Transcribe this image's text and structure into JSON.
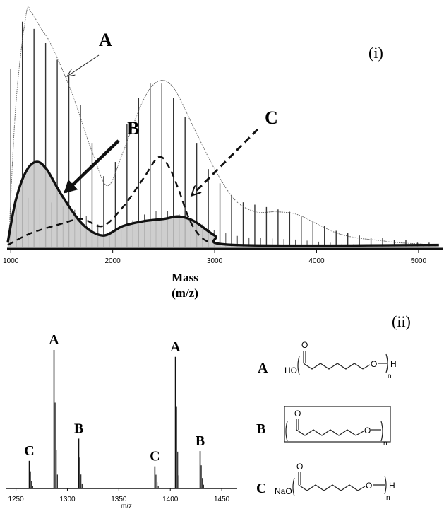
{
  "figure": {
    "panel_i_label": "(i)",
    "panel_ii_label": "(ii)",
    "callout_a": "A",
    "callout_b": "B",
    "callout_c": "C",
    "structures": [
      {
        "letter": "A",
        "end_left": "HO",
        "carbonyl_o": "O",
        "ether_o": "O",
        "end_right": "H",
        "subscript": "n"
      },
      {
        "letter": "B",
        "carbonyl_o": "O",
        "ether_o": "O",
        "subscript": "n"
      },
      {
        "letter": "C",
        "end_left": "NaO",
        "carbonyl_o": "O",
        "ether_o": "O",
        "end_right": "H",
        "subscript": "n"
      }
    ]
  },
  "chart_data": [
    {
      "type": "line",
      "panel": "(i)",
      "xlabel_line1": "Mass",
      "xlabel_line2": "(m/z)",
      "xlim": [
        950,
        5250
      ],
      "ylim": [
        0,
        100
      ],
      "x_ticks": [
        "1000",
        "2000",
        "3000",
        "4000",
        "5000"
      ],
      "series": [
        {
          "name": "A",
          "style": "thin dotted envelope",
          "x": [
            980,
            1050,
            1150,
            1200,
            1300,
            1400,
            1600,
            1800,
            1950,
            2100,
            2300,
            2450,
            2600,
            2800,
            3000,
            3200,
            3400,
            3600,
            3800,
            4000,
            4200,
            4400,
            4600,
            4800,
            5000,
            5200
          ],
          "y": [
            2,
            60,
            98,
            99,
            92,
            85,
            65,
            40,
            26,
            40,
            62,
            70,
            67,
            50,
            33,
            20,
            15,
            15,
            14,
            10,
            6,
            4,
            3,
            2,
            1.5,
            1
          ]
        },
        {
          "name": "B",
          "style": "thick solid",
          "x": [
            970,
            1050,
            1150,
            1250,
            1350,
            1500,
            1700,
            1900,
            2100,
            2300,
            2500,
            2650,
            2800,
            3000,
            3200,
            5200
          ],
          "y": [
            2,
            20,
            32,
            36,
            33,
            22,
            10,
            5,
            9,
            11,
            12,
            13,
            11,
            5,
            1,
            1
          ]
        },
        {
          "name": "C",
          "style": "dashed",
          "x": [
            970,
            1200,
            1500,
            1700,
            1900,
            2100,
            2300,
            2450,
            2550,
            2650,
            2750,
            2850,
            2950
          ],
          "y": [
            1,
            6,
            10,
            12,
            9,
            17,
            29,
            38,
            34,
            24,
            12,
            5,
            2
          ]
        },
        {
          "name": "bars",
          "x": [
            1000,
            1114,
            1228,
            1342,
            1456,
            1570,
            1684,
            1798,
            1912,
            2026,
            2140,
            2254,
            2368,
            2482,
            2596,
            2710,
            2824,
            2938,
            3052,
            3166,
            3280,
            3394,
            3508,
            3622,
            3736,
            3850,
            3964,
            4078,
            4192,
            4306,
            4420,
            4534,
            4648,
            4762,
            4876,
            4990,
            5104
          ],
          "y": [
            75,
            95,
            92,
            86,
            79,
            72,
            60,
            44,
            30,
            36,
            52,
            63,
            69,
            69,
            63,
            55,
            44,
            33,
            27,
            22,
            19,
            18,
            17,
            16,
            15,
            13,
            11,
            9,
            7,
            6,
            5,
            4,
            4,
            3,
            3,
            2,
            2
          ]
        }
      ]
    },
    {
      "type": "bar",
      "panel": "(ii)",
      "xlabel": "m/z",
      "xlim": [
        1240,
        1465
      ],
      "ylim": [
        0,
        100
      ],
      "x_ticks": [
        "1250",
        "1300",
        "1350",
        "1400",
        "1450"
      ],
      "peak_labels": [
        "C",
        "A",
        "B",
        "C",
        "A",
        "B"
      ],
      "x": [
        1263,
        1287,
        1311,
        1385,
        1405,
        1429
      ],
      "values": [
        20,
        100,
        36,
        16,
        95,
        27
      ]
    }
  ]
}
